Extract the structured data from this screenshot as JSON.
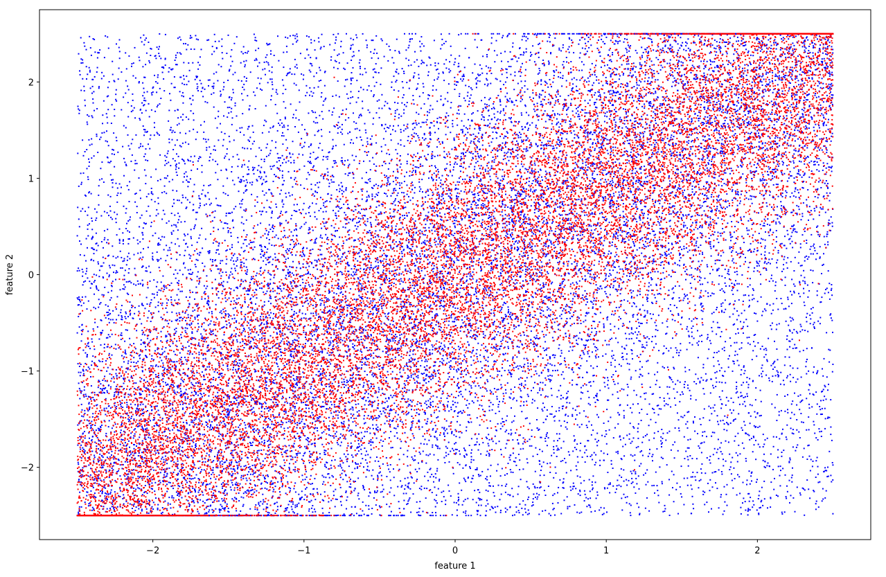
{
  "chart_data": {
    "type": "scatter",
    "title": "",
    "xlabel": "feature 1",
    "ylabel": "feature 2",
    "xlim": [
      -2.75,
      2.75
    ],
    "ylim": [
      -2.75,
      2.75
    ],
    "xticks": [
      -2,
      -1,
      0,
      1,
      2
    ],
    "yticks": [
      -2,
      -1,
      0,
      1,
      2
    ],
    "xtick_labels": [
      "−2",
      "−1",
      "0",
      "1",
      "2"
    ],
    "ytick_labels": [
      "−2",
      "−1",
      "0",
      "1",
      "2"
    ],
    "grid": false,
    "legend": "none",
    "series": [
      {
        "color": "#0000ff",
        "x_range": [
          -2.5,
          2.5
        ],
        "y_range": [
          -2.5,
          2.5
        ],
        "distribution": "uniform over the square, densest along the band y ≈ x"
      },
      {
        "color": "#ff0000",
        "x_range": [
          -2.5,
          2.5
        ],
        "y_range": [
          -2.5,
          2.5
        ],
        "distribution": "concentrated along the band y ≈ x, drawn on top of the blue points"
      }
    ]
  }
}
